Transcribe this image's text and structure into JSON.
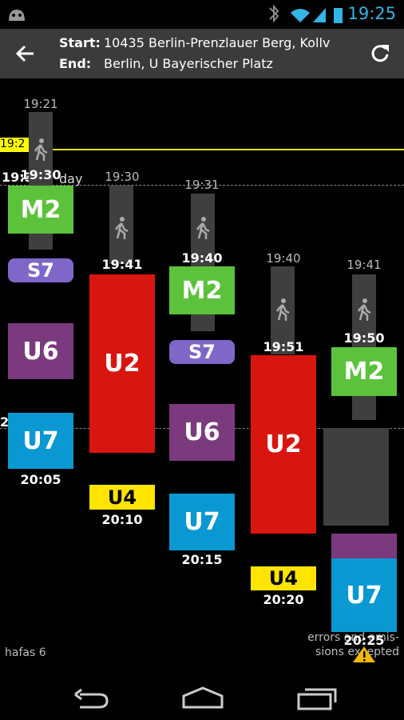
{
  "status_bar": {
    "time": "19:25"
  },
  "header": {
    "start_label": "Start:",
    "start": "10435 Berlin-Prenzlauer Berg, Kollv",
    "end_label": "End:",
    "end": "Berlin, U Bayerischer Platz"
  },
  "timeline": {
    "now_label": "19:2",
    "day_time": "19:3",
    "day_label": "day",
    "left_marker": "2"
  },
  "trips": [
    {
      "depart": "19:21",
      "board": "19:30",
      "legs": [
        "M2",
        "S7",
        "U6",
        "U7"
      ],
      "arrive": "20:05"
    },
    {
      "depart": "19:30",
      "board": "19:41",
      "legs": [
        "U2",
        "U4"
      ],
      "arrive": "20:10"
    },
    {
      "depart": "19:31",
      "board": "19:40",
      "legs": [
        "M2",
        "S7",
        "U6",
        "U7"
      ],
      "arrive": "20:15"
    },
    {
      "depart": "19:40",
      "board": "19:51",
      "legs": [
        "U2",
        "U4"
      ],
      "arrive": "20:20"
    },
    {
      "depart": "19:41",
      "board": "19:50",
      "legs": [
        "M2",
        "U7"
      ],
      "arrive": "20:25"
    }
  ],
  "footer": {
    "provider": "hafas 6",
    "disclaimer_line1": "errors and omis-",
    "disclaimer_line2": "sions excepted"
  }
}
